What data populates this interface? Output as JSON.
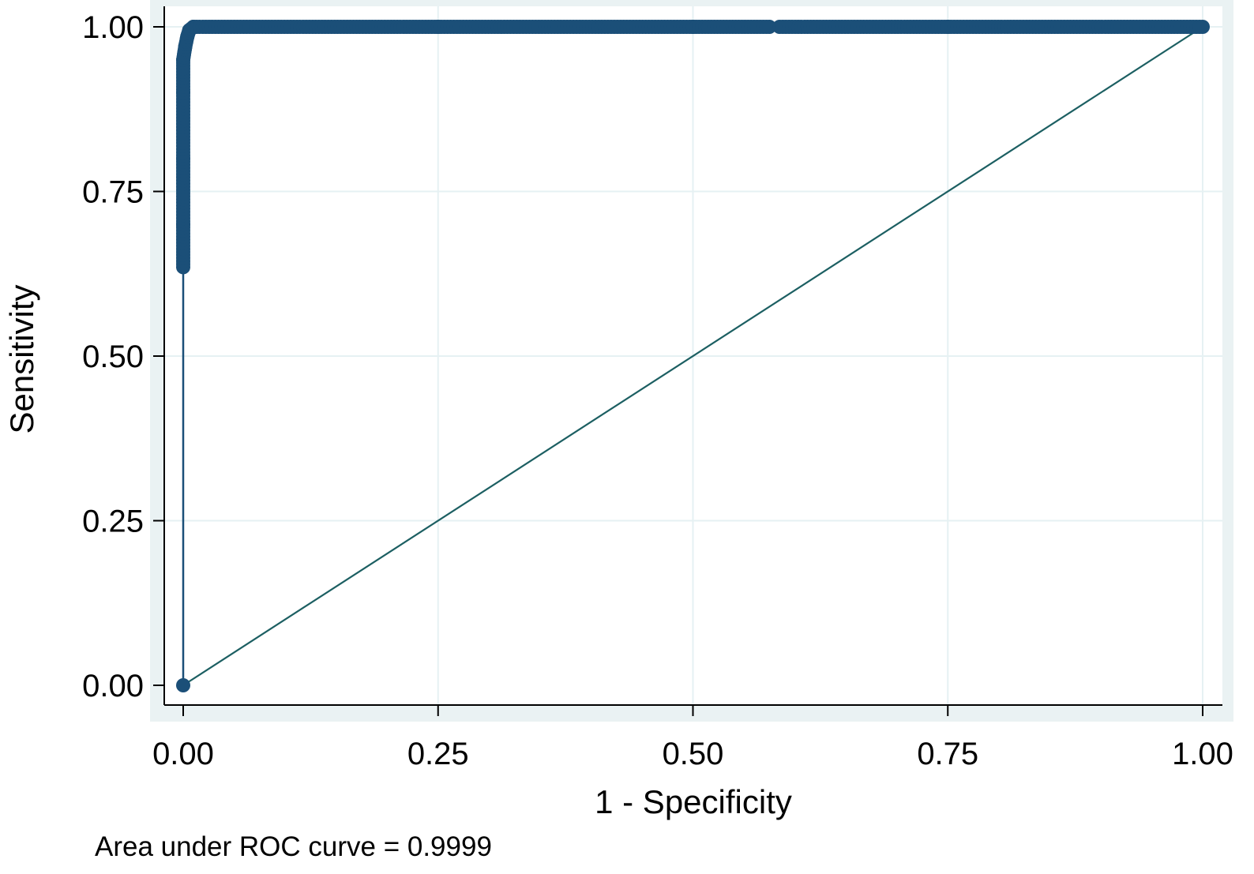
{
  "chart_data": {
    "type": "line",
    "xlabel": "1 - Specificity",
    "ylabel": "Sensitivity",
    "xlim": [
      0,
      1
    ],
    "ylim": [
      0,
      1
    ],
    "x_ticks": [
      "0.00",
      "0.25",
      "0.50",
      "0.75",
      "1.00"
    ],
    "y_ticks": [
      "0.00",
      "0.25",
      "0.50",
      "0.75",
      "1.00"
    ],
    "grid": true,
    "note": "Area under ROC curve = 0.9999",
    "colors": {
      "background": "#eaf2f3",
      "plot_area": "#ffffff",
      "grid": "#e6f1f3",
      "curve": "#1b4f78",
      "reference_line": "#1c5f62"
    },
    "series": [
      {
        "role": "roc-curve",
        "points": [
          [
            0.0,
            0.0
          ],
          [
            0.0,
            0.635
          ],
          [
            0.0,
            0.7
          ],
          [
            0.0,
            0.8
          ],
          [
            0.0,
            0.9
          ],
          [
            0.0,
            0.95
          ],
          [
            0.002,
            0.97
          ],
          [
            0.004,
            0.985
          ],
          [
            0.006,
            0.995
          ],
          [
            0.01,
            1.0
          ],
          [
            0.25,
            1.0
          ],
          [
            0.5,
            1.0
          ],
          [
            0.575,
            1.0
          ],
          [
            0.585,
            1.0
          ],
          [
            0.75,
            1.0
          ],
          [
            1.0,
            1.0
          ]
        ]
      },
      {
        "role": "reference-line",
        "points": [
          [
            0.0,
            0.0
          ],
          [
            1.0,
            1.0
          ]
        ]
      }
    ]
  }
}
